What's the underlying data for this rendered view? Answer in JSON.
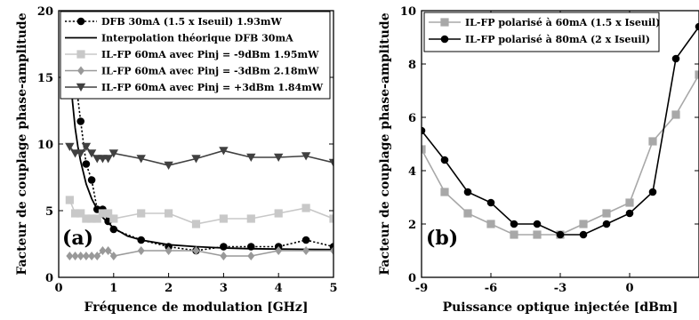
{
  "chart_data": [
    {
      "type": "line",
      "panel_label": "(a)",
      "xlabel": "Fréquence de modulation [GHz]",
      "ylabel": "Facteur de couplage phase-amplitude",
      "xlim": [
        0,
        5
      ],
      "ylim": [
        0,
        20
      ],
      "xticks": [
        "0",
        "1",
        "2",
        "3",
        "4",
        "5"
      ],
      "yticks": [
        "0",
        "5",
        "10",
        "15",
        "20"
      ],
      "grid": false,
      "legend_position": "top-right",
      "series": [
        {
          "name": "DFB 30mA (1.5 x Iseuil) 1.93mW",
          "color": "#000000",
          "dash": "dotted",
          "marker": "circle",
          "x": [
            0.3,
            0.4,
            0.5,
            0.6,
            0.7,
            0.8,
            0.9,
            1.0,
            1.5,
            2.0,
            2.5,
            3.0,
            3.5,
            4.0,
            4.5,
            5.0
          ],
          "y": [
            15.1,
            11.7,
            8.5,
            7.3,
            5.1,
            5.1,
            4.2,
            3.6,
            2.8,
            2.3,
            2.0,
            2.3,
            2.3,
            2.3,
            2.8,
            2.3
          ]
        },
        {
          "name": "Interpolation théorique DFB 30mA",
          "color": "#000000",
          "dash": "solid",
          "marker": "none",
          "x": [
            0.13,
            0.15,
            0.18,
            0.2,
            0.25,
            0.3,
            0.35,
            0.4,
            0.5,
            0.6,
            0.7,
            0.8,
            1.0,
            1.25,
            1.5,
            2.0,
            2.5,
            3.0,
            3.5,
            4.0,
            4.5,
            5.0
          ],
          "y": [
            20,
            19,
            17.5,
            16.2,
            13.2,
            11.2,
            9.8,
            8.7,
            7.0,
            5.9,
            5.1,
            4.5,
            3.7,
            3.1,
            2.8,
            2.45,
            2.3,
            2.2,
            2.15,
            2.12,
            2.1,
            2.08
          ]
        },
        {
          "name": "IL-FP 60mA avec Pinj = -9dBm 1.95mW",
          "color": "#c8c8c8",
          "dash": "solid",
          "marker": "square",
          "x": [
            0.2,
            0.3,
            0.4,
            0.5,
            0.6,
            0.7,
            0.8,
            0.9,
            1.0,
            1.5,
            2.0,
            2.5,
            3.0,
            3.5,
            4.0,
            4.5,
            5.0
          ],
          "y": [
            5.8,
            4.8,
            4.8,
            4.4,
            4.4,
            4.4,
            4.8,
            4.8,
            4.4,
            4.8,
            4.8,
            4.0,
            4.4,
            4.4,
            4.8,
            5.2,
            4.4
          ]
        },
        {
          "name": "IL-FP 60mA avec Pinj = -3dBm 2.18mW",
          "color": "#999999",
          "dash": "solid",
          "marker": "diamond",
          "x": [
            0.2,
            0.3,
            0.4,
            0.5,
            0.6,
            0.7,
            0.8,
            0.9,
            1.0,
            1.5,
            2.0,
            2.5,
            3.0,
            3.5,
            4.0,
            4.5,
            5.0
          ],
          "y": [
            1.6,
            1.6,
            1.6,
            1.6,
            1.6,
            1.6,
            2.0,
            2.0,
            1.6,
            2.0,
            2.0,
            2.0,
            1.6,
            1.6,
            2.0,
            2.0,
            2.0
          ]
        },
        {
          "name": "IL-FP 60mA avec Pinj = +3dBm 1.84mW",
          "color": "#404040",
          "dash": "solid",
          "marker": "triangle-down",
          "x": [
            0.2,
            0.3,
            0.4,
            0.5,
            0.6,
            0.7,
            0.8,
            0.9,
            1.0,
            1.5,
            2.0,
            2.5,
            3.0,
            3.5,
            4.0,
            4.5,
            5.0
          ],
          "y": [
            9.8,
            9.3,
            9.3,
            9.8,
            9.3,
            8.9,
            8.9,
            8.9,
            9.3,
            8.9,
            8.4,
            8.9,
            9.5,
            9.0,
            9.0,
            9.1,
            8.6
          ]
        }
      ]
    },
    {
      "type": "line",
      "panel_label": "(b)",
      "xlabel": "Puissance optique injectée [dBm]",
      "ylabel": "Facteur de couplage phase-amplitude",
      "xlim": [
        -9,
        3
      ],
      "ylim": [
        0,
        10
      ],
      "xticks": [
        "-9",
        "-6",
        "-3",
        "0"
      ],
      "yticks": [
        "0",
        "2",
        "4",
        "6",
        "8",
        "10"
      ],
      "grid": false,
      "legend_position": "top-left",
      "series": [
        {
          "name": "IL-FP polarisé à 60mA (1.5 x Iseuil)",
          "color": "#a8a8a8",
          "dash": "solid",
          "marker": "square",
          "x": [
            -9,
            -8,
            -7,
            -6,
            -5,
            -4,
            -3,
            -2,
            -1,
            0,
            1,
            2,
            3
          ],
          "y": [
            4.8,
            3.2,
            2.4,
            2.0,
            1.6,
            1.6,
            1.6,
            2.0,
            2.4,
            2.8,
            5.1,
            6.1,
            7.6
          ]
        },
        {
          "name": "IL-FP polarisé à 80mA (2 x Iseuil)",
          "color": "#000000",
          "dash": "solid",
          "marker": "circle",
          "x": [
            -9,
            -8,
            -7,
            -6,
            -5,
            -4,
            -3,
            -2,
            -1,
            0,
            1,
            2,
            3
          ],
          "y": [
            5.5,
            4.4,
            3.2,
            2.8,
            2.0,
            2.0,
            1.6,
            1.6,
            2.0,
            2.4,
            3.2,
            8.2,
            9.4
          ]
        }
      ]
    }
  ]
}
